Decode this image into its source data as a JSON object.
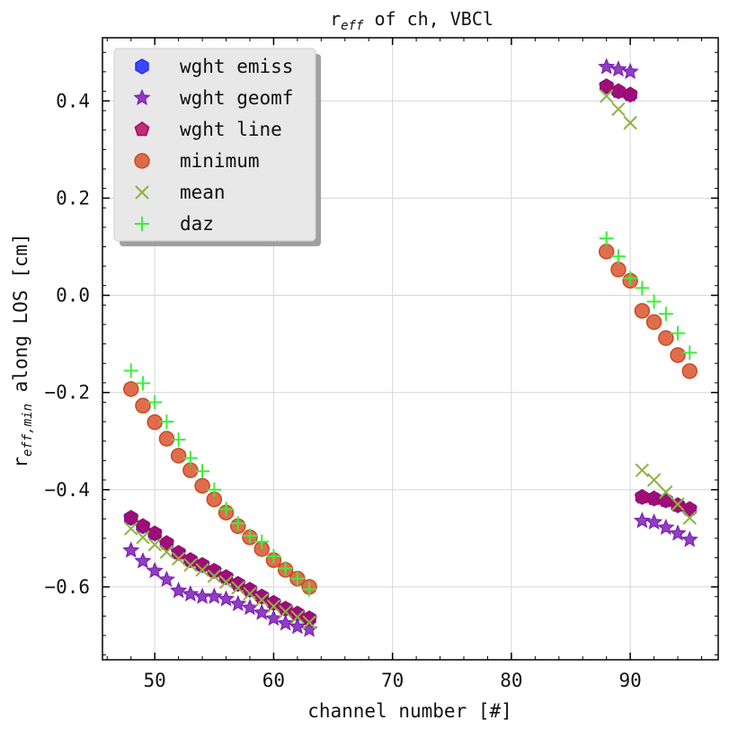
{
  "chart_data": {
    "type": "scatter",
    "title": {
      "main": "r",
      "sub": "eff",
      "rest": " of ch, VBCl"
    },
    "xlabel": "channel number [#]",
    "ylabel": {
      "main": "r",
      "sub": "eff,min",
      "rest": " along LOS [cm]"
    },
    "xlim": [
      45.6,
      97.4
    ],
    "ylim": [
      -0.75,
      0.53
    ],
    "xticks": [
      50,
      60,
      70,
      80,
      90
    ],
    "xtick_labels": [
      "50",
      "60",
      "70",
      "80",
      "90"
    ],
    "yticks": [
      -0.6,
      -0.4,
      -0.2,
      0.0,
      0.2,
      0.4
    ],
    "ytick_labels": [
      "−0.6",
      "−0.4",
      "−0.2",
      "0.0",
      "0.2",
      "0.4"
    ],
    "grid": true,
    "legend_position": "top-left",
    "series": [
      {
        "name": "wght emiss",
        "marker": "hexagon",
        "color": "#1f2cff",
        "x": [
          48,
          49,
          50,
          51,
          52,
          53,
          54,
          55,
          56,
          57,
          58,
          59,
          60,
          61,
          62,
          63,
          88,
          89,
          90,
          91,
          92,
          93,
          94,
          95
        ],
        "y": [
          -0.458,
          -0.475,
          -0.49,
          -0.51,
          -0.53,
          -0.545,
          -0.555,
          -0.567,
          -0.58,
          -0.594,
          -0.606,
          -0.62,
          -0.633,
          -0.645,
          -0.655,
          -0.665,
          0.43,
          0.42,
          0.413,
          -0.415,
          -0.418,
          -0.422,
          -0.432,
          -0.44
        ]
      },
      {
        "name": "wght geomf",
        "marker": "star",
        "color": "#7b1fb5",
        "x": [
          48,
          49,
          50,
          51,
          52,
          53,
          54,
          55,
          56,
          57,
          58,
          59,
          60,
          61,
          62,
          63,
          88,
          89,
          90,
          91,
          92,
          93,
          94,
          95
        ],
        "y": [
          -0.525,
          -0.547,
          -0.567,
          -0.585,
          -0.608,
          -0.615,
          -0.62,
          -0.62,
          -0.625,
          -0.635,
          -0.643,
          -0.653,
          -0.665,
          -0.675,
          -0.682,
          -0.688,
          0.47,
          0.465,
          0.46,
          -0.464,
          -0.467,
          -0.478,
          -0.49,
          -0.503
        ]
      },
      {
        "name": "wght line",
        "marker": "pentagon",
        "color": "#b3005a",
        "x": [
          48,
          49,
          50,
          51,
          52,
          53,
          54,
          55,
          56,
          57,
          58,
          59,
          60,
          61,
          62,
          63,
          88,
          89,
          90,
          91,
          92,
          93,
          94,
          95
        ],
        "y": [
          -0.458,
          -0.475,
          -0.49,
          -0.51,
          -0.53,
          -0.545,
          -0.555,
          -0.567,
          -0.58,
          -0.594,
          -0.606,
          -0.62,
          -0.633,
          -0.645,
          -0.655,
          -0.665,
          0.43,
          0.42,
          0.413,
          -0.415,
          -0.418,
          -0.422,
          -0.432,
          -0.44
        ]
      },
      {
        "name": "minimum",
        "marker": "circle",
        "color": "#d9552f",
        "x": [
          48,
          49,
          50,
          51,
          52,
          53,
          54,
          55,
          56,
          57,
          58,
          59,
          60,
          61,
          62,
          63,
          88,
          89,
          90,
          91,
          92,
          93,
          94,
          95
        ],
        "y": [
          -0.193,
          -0.227,
          -0.261,
          -0.295,
          -0.33,
          -0.36,
          -0.392,
          -0.42,
          -0.447,
          -0.475,
          -0.498,
          -0.522,
          -0.545,
          -0.565,
          -0.583,
          -0.6,
          0.09,
          0.053,
          0.03,
          -0.032,
          -0.055,
          -0.088,
          -0.123,
          -0.156
        ]
      },
      {
        "name": "mean",
        "marker": "x",
        "color": "#8db33d",
        "x": [
          48,
          49,
          50,
          51,
          52,
          53,
          54,
          55,
          56,
          57,
          58,
          59,
          60,
          61,
          62,
          63,
          88,
          89,
          90,
          91,
          92,
          93,
          94,
          95
        ],
        "y": [
          -0.48,
          -0.498,
          -0.513,
          -0.528,
          -0.542,
          -0.555,
          -0.565,
          -0.578,
          -0.59,
          -0.602,
          -0.614,
          -0.627,
          -0.64,
          -0.651,
          -0.662,
          -0.673,
          0.41,
          0.383,
          0.355,
          -0.36,
          -0.38,
          -0.405,
          -0.43,
          -0.458
        ]
      },
      {
        "name": "daz",
        "marker": "plus",
        "color": "#3aef3a",
        "x": [
          48,
          49,
          50,
          51,
          52,
          53,
          54,
          55,
          56,
          57,
          58,
          59,
          60,
          61,
          62,
          63,
          88,
          89,
          90,
          91,
          92,
          93,
          94,
          95
        ],
        "y": [
          -0.155,
          -0.181,
          -0.22,
          -0.26,
          -0.297,
          -0.335,
          -0.362,
          -0.4,
          -0.44,
          -0.469,
          -0.495,
          -0.507,
          -0.537,
          -0.562,
          -0.583,
          -0.605,
          0.117,
          0.08,
          0.035,
          0.015,
          -0.013,
          -0.038,
          -0.078,
          -0.118
        ]
      }
    ]
  }
}
